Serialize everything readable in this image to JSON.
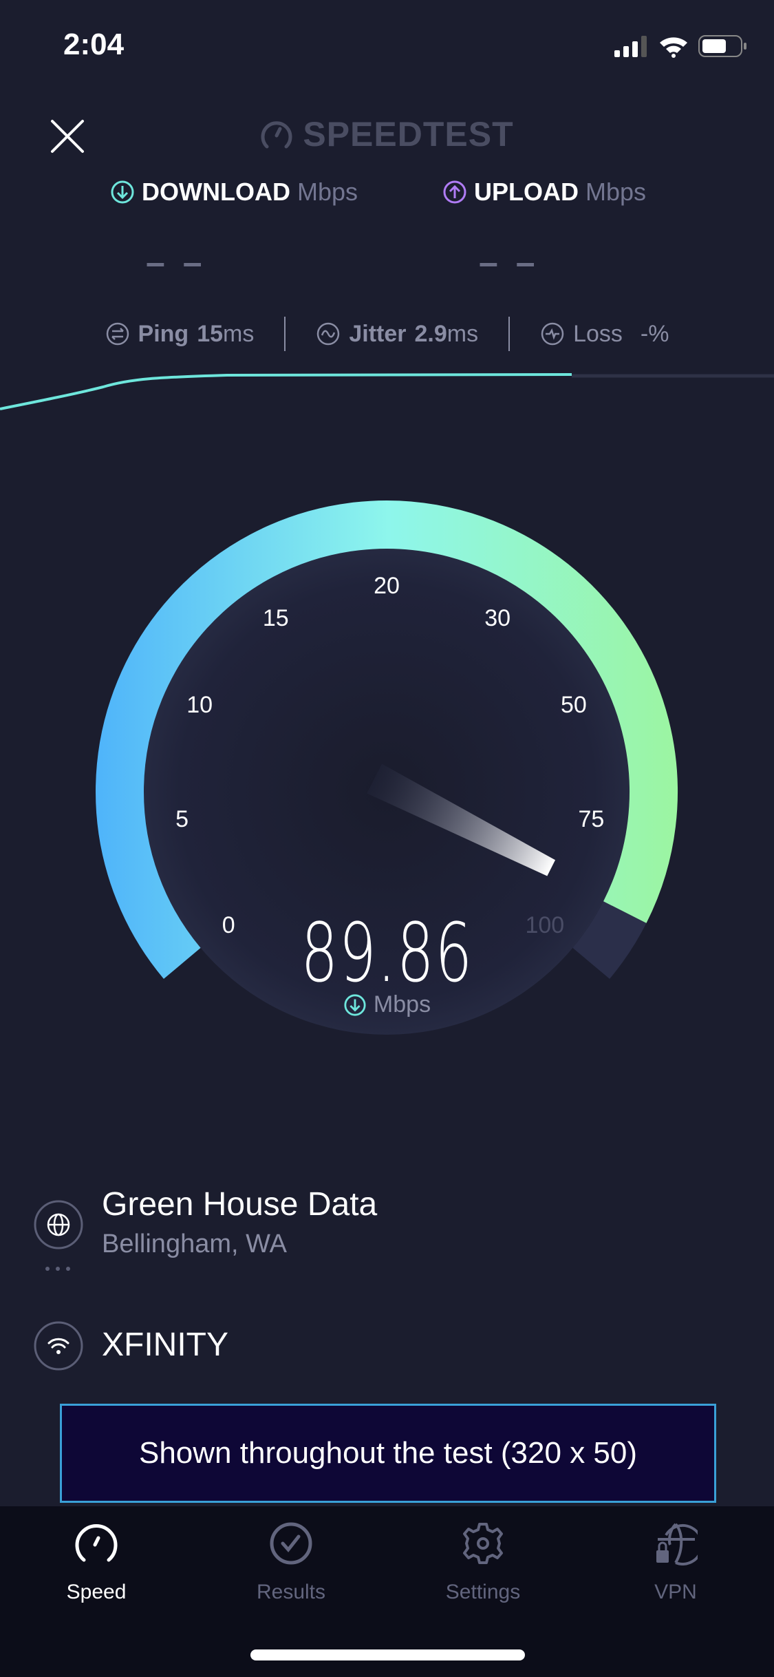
{
  "status_bar": {
    "time": "2:04"
  },
  "header": {
    "brand": "SPEEDTEST"
  },
  "download": {
    "label": "DOWNLOAD",
    "unit": "Mbps",
    "value": "– –"
  },
  "upload": {
    "label": "UPLOAD",
    "unit": "Mbps",
    "value": "– –"
  },
  "metrics": {
    "ping": {
      "label": "Ping",
      "value": "15",
      "unit": "ms"
    },
    "jitter": {
      "label": "Jitter",
      "value": "2.9",
      "unit": "ms"
    },
    "loss": {
      "label": "Loss",
      "value": "-",
      "unit": "%"
    }
  },
  "gauge": {
    "ticks": [
      "0",
      "5",
      "10",
      "15",
      "20",
      "30",
      "50",
      "75",
      "100"
    ],
    "current_value": "89.86",
    "current_numeric": 89.86,
    "unit": "Mbps",
    "colors": {
      "start": "#4fb4fa",
      "mid": "#8ef6ec",
      "end": "#9cf5a0",
      "track": "#2b2f4a"
    }
  },
  "server": {
    "name": "Green House Data",
    "location": "Bellingham, WA"
  },
  "isp": {
    "name": "XFINITY"
  },
  "ad": {
    "text": "Shown throughout the test (320 x 50)"
  },
  "tabs": [
    {
      "label": "Speed",
      "icon": "speedometer-icon",
      "active": true
    },
    {
      "label": "Results",
      "icon": "check-circle-icon",
      "active": false
    },
    {
      "label": "Settings",
      "icon": "gear-icon",
      "active": false
    },
    {
      "label": "VPN",
      "icon": "globe-lock-icon",
      "active": false
    }
  ],
  "accent": {
    "download": "#6ee6dc",
    "upload": "#b07cf5"
  }
}
